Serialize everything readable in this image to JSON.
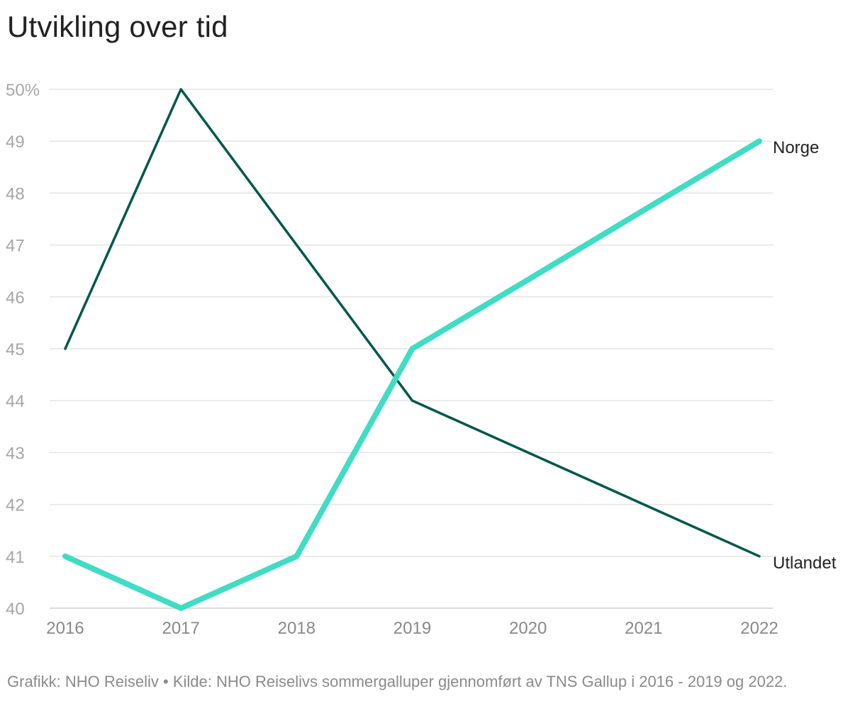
{
  "title": "Utvikling over tid",
  "source": "Grafikk: NHO Reiseliv • Kilde: NHO Reiselivs sommergalluper gjennomført av TNS Gallup i 2016 - 2019 og 2022.",
  "chart_data": {
    "type": "line",
    "title": "Utvikling over tid",
    "xlabel": "",
    "ylabel": "",
    "x": [
      "2016",
      "2017",
      "2018",
      "2019",
      "2020",
      "2021",
      "2022"
    ],
    "x_tick_labels": [
      "2016",
      "2017",
      "2018",
      "2019",
      "2020",
      "2021",
      "2022"
    ],
    "y_tick_labels": [
      "40",
      "41",
      "42",
      "43",
      "44",
      "45",
      "46",
      "47",
      "48",
      "49",
      "50%"
    ],
    "y_ticks": [
      40,
      41,
      42,
      43,
      44,
      45,
      46,
      47,
      48,
      49,
      50
    ],
    "ylim": [
      40,
      50
    ],
    "grid": "horizontal",
    "legend": "direct labels at line ends",
    "series": [
      {
        "name": "Norge",
        "color": "#40dcc3",
        "values": [
          41,
          40,
          41,
          45,
          46.33,
          47.67,
          49
        ]
      },
      {
        "name": "Utlandet",
        "color": "#00574a",
        "values": [
          45,
          50,
          47,
          44,
          43,
          42,
          41
        ]
      }
    ]
  }
}
